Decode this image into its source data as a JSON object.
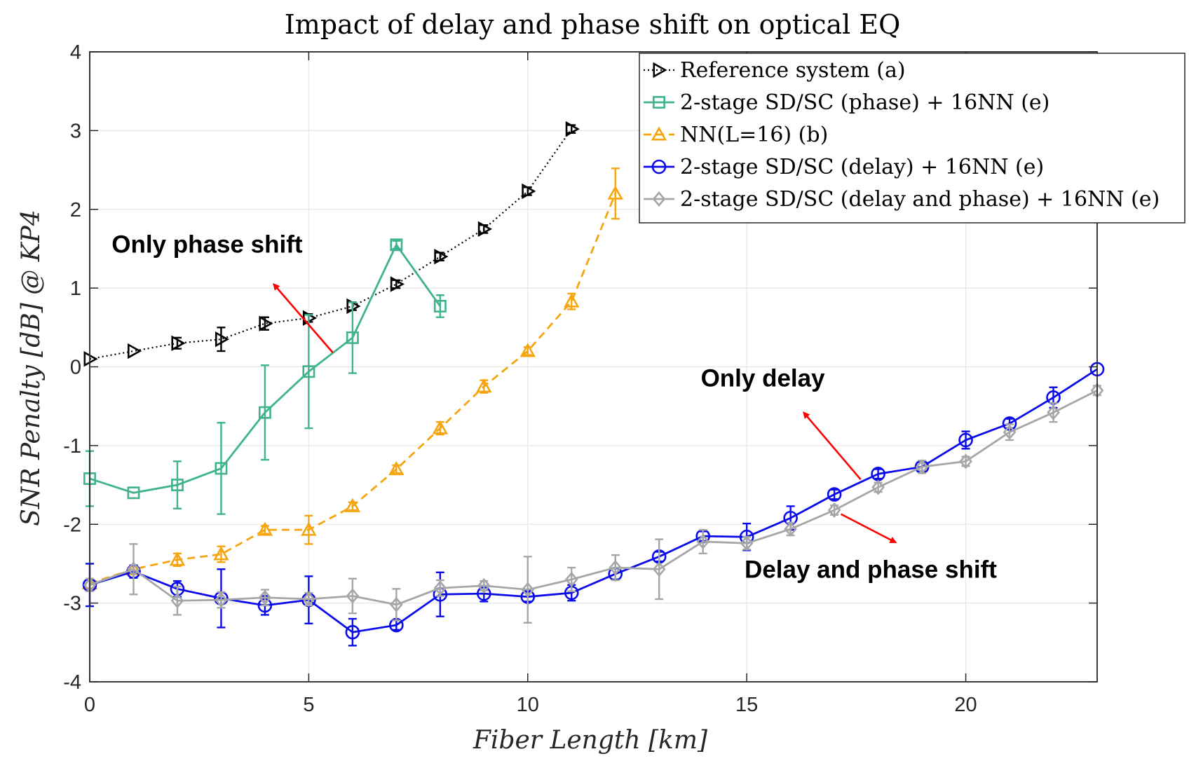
{
  "chart_data": {
    "type": "line",
    "title": "Impact of delay and phase shift on optical EQ",
    "xlabel": "Fiber Length [km]",
    "ylabel": "SNR Penalty [dB] @ KP4",
    "xlim": [
      0,
      23
    ],
    "ylim": [
      -4,
      4
    ],
    "xticks": [
      0,
      5,
      10,
      15,
      20
    ],
    "yticks": [
      -4,
      -3,
      -2,
      -1,
      0,
      1,
      2,
      3,
      4
    ],
    "grid": true,
    "legend_position": "top-right",
    "series": [
      {
        "name": "Reference system (a)",
        "color": "#000000",
        "marker": "triangle-right",
        "dash": "dotted",
        "x": [
          0,
          1,
          2,
          3,
          4,
          5,
          6,
          7,
          8,
          9,
          10,
          11
        ],
        "y": [
          0.1,
          0.2,
          0.3,
          0.35,
          0.55,
          0.62,
          0.77,
          1.05,
          1.4,
          1.75,
          2.23,
          3.02
        ],
        "err": [
          0.04,
          0.04,
          0.07,
          0.15,
          0.08,
          0.05,
          0.05,
          0.05,
          0.05,
          0.05,
          0.05,
          0.05
        ]
      },
      {
        "name": "2-stage SD/SC (phase) + 16NN (e)",
        "color": "#3fb28f",
        "marker": "square",
        "dash": "solid",
        "x": [
          0,
          1,
          2,
          3,
          4,
          5,
          6,
          7,
          8
        ],
        "y": [
          -1.42,
          -1.6,
          -1.5,
          -1.29,
          -0.58,
          -0.06,
          0.37,
          1.55,
          0.77
        ],
        "err": [
          0.35,
          0.04,
          0.3,
          0.58,
          0.6,
          0.72,
          0.45,
          0.05,
          0.14
        ]
      },
      {
        "name": "NN(L=16) (b)",
        "color": "#f5a510",
        "marker": "triangle-up",
        "dash": "dashed",
        "x": [
          0,
          1,
          2,
          3,
          4,
          5,
          6,
          7,
          8,
          9,
          10,
          11,
          12
        ],
        "y": [
          -2.75,
          -2.57,
          -2.45,
          -2.38,
          -2.07,
          -2.07,
          -1.77,
          -1.3,
          -0.78,
          -0.25,
          0.2,
          0.83,
          2.2
        ],
        "err": [
          0.04,
          0.04,
          0.08,
          0.1,
          0.05,
          0.18,
          0.05,
          0.05,
          0.08,
          0.08,
          0.05,
          0.1,
          0.32
        ]
      },
      {
        "name": "2-stage SD/SC (delay) + 16NN (e)",
        "color": "#0a0aeb",
        "marker": "circle",
        "dash": "solid",
        "x": [
          0,
          1,
          2,
          3,
          4,
          5,
          6,
          7,
          8,
          9,
          10,
          11,
          12,
          13,
          14,
          15,
          16,
          17,
          18,
          19,
          20,
          21,
          22,
          23
        ],
        "y": [
          -2.77,
          -2.6,
          -2.82,
          -2.94,
          -3.03,
          -2.96,
          -3.37,
          -3.28,
          -2.89,
          -2.88,
          -2.92,
          -2.87,
          -2.63,
          -2.41,
          -2.15,
          -2.16,
          -1.92,
          -1.62,
          -1.36,
          -1.27,
          -0.93,
          -0.72,
          -0.39,
          -0.03
        ],
        "err": [
          0.27,
          0.08,
          0.1,
          0.37,
          0.12,
          0.3,
          0.17,
          0.06,
          0.28,
          0.1,
          0.06,
          0.1,
          0.07,
          0.06,
          0.06,
          0.17,
          0.15,
          0.06,
          0.06,
          0.06,
          0.11,
          0.06,
          0.13,
          0.04
        ]
      },
      {
        "name": "2-stage SD/SC (delay and phase) + 16NN (e)",
        "color": "#a6a6a6",
        "marker": "diamond",
        "dash": "solid",
        "x": [
          0,
          1,
          2,
          3,
          4,
          5,
          6,
          7,
          8,
          9,
          10,
          11,
          12,
          13,
          14,
          15,
          16,
          17,
          18,
          19,
          20,
          21,
          22,
          23
        ],
        "y": [
          -2.77,
          -2.57,
          -2.97,
          -2.96,
          -2.93,
          -2.95,
          -2.91,
          -3.02,
          -2.81,
          -2.78,
          -2.83,
          -2.7,
          -2.55,
          -2.57,
          -2.22,
          -2.24,
          -2.06,
          -1.82,
          -1.53,
          -1.27,
          -1.2,
          -0.83,
          -0.58,
          -0.3
        ],
        "err": [
          0.08,
          0.32,
          0.18,
          0.1,
          0.1,
          0.08,
          0.22,
          0.2,
          0.1,
          0.06,
          0.42,
          0.15,
          0.16,
          0.38,
          0.15,
          0.08,
          0.08,
          0.06,
          0.06,
          0.08,
          0.06,
          0.1,
          0.12,
          0.06
        ]
      }
    ],
    "annotations": [
      {
        "text": "Only phase shift",
        "x": 0.5,
        "y": 1.45,
        "arrow_from": [
          5.55,
          0.18
        ],
        "arrow_to": [
          4.2,
          1.05
        ]
      },
      {
        "text": "Only delay",
        "x": 13.95,
        "y": -0.25,
        "arrow_from": [
          17.6,
          -1.43
        ],
        "arrow_to": [
          16.3,
          -0.58
        ]
      },
      {
        "text": "Delay and phase shift",
        "x": 14.95,
        "y": -2.68,
        "arrow_from": [
          17.15,
          -1.87
        ],
        "arrow_to": [
          18.4,
          -2.23
        ]
      }
    ]
  }
}
